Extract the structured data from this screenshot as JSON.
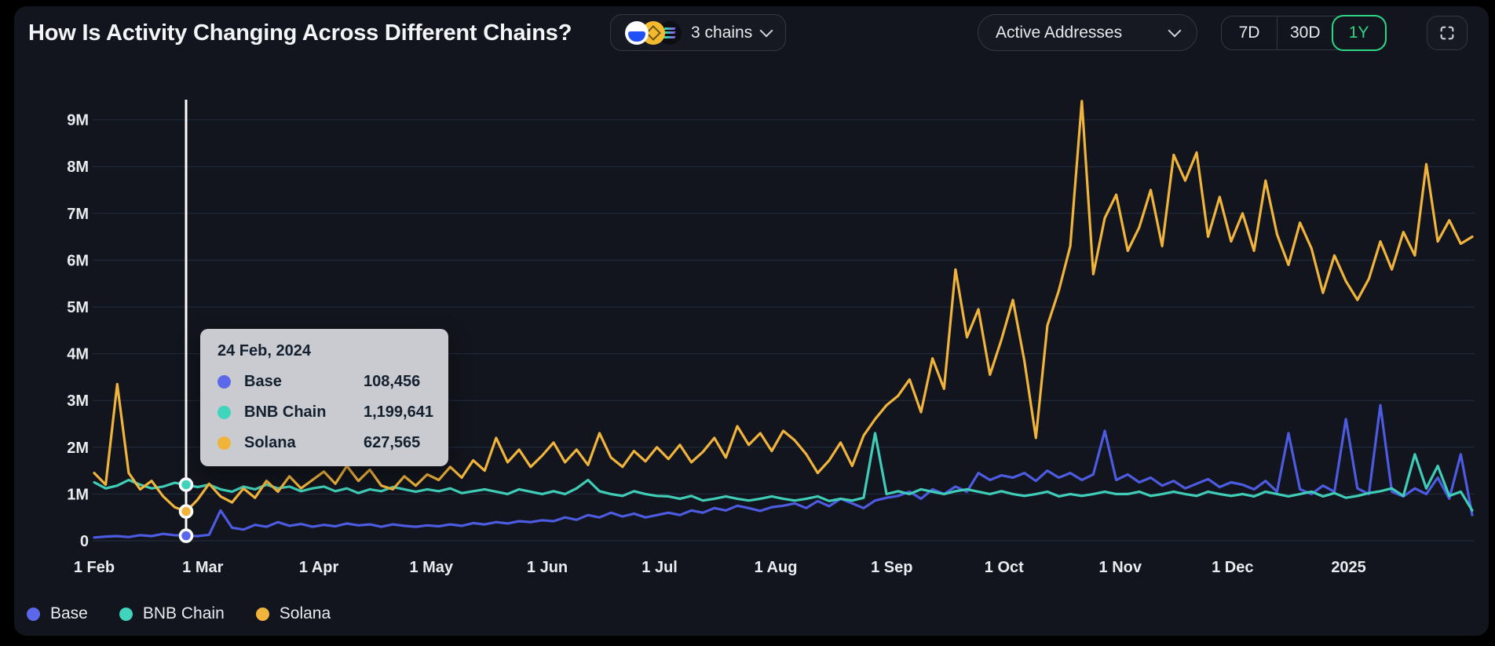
{
  "header": {
    "title": "How Is Activity Changing Across Different Chains?",
    "chains_selector": {
      "label": "3 chains",
      "icons": [
        "base-coin",
        "bnb-coin",
        "solana-coin"
      ]
    },
    "metric_selector": {
      "value": "Active Addresses"
    },
    "range_buttons": [
      {
        "label": "7D",
        "active": false
      },
      {
        "label": "30D",
        "active": false
      },
      {
        "label": "1Y",
        "active": true
      }
    ]
  },
  "colors": {
    "background": "#12151d",
    "outer": "#000000",
    "gridline": "rgba(96,135,180,0.22)",
    "axis_text": "#e9ecef",
    "accent_green": "#2ed583",
    "hover_line": "#ffffff",
    "tooltip_bg": "#c9cbd0",
    "tooltip_text": "#15202e"
  },
  "tooltip": {
    "date": "24 Feb, 2024",
    "point_index": 8,
    "rows": [
      {
        "name": "Base",
        "value": "108,456"
      },
      {
        "name": "BNB Chain",
        "value": "1,199,641"
      },
      {
        "name": "Solana",
        "value": "627,565"
      }
    ]
  },
  "legend": [
    {
      "label": "Base",
      "color": "#5b68ea"
    },
    {
      "label": "BNB Chain",
      "color": "#41d4bd"
    },
    {
      "label": "Solana",
      "color": "#f0b43c"
    }
  ],
  "chart_data": {
    "type": "line",
    "title": "How Is Activity Changing Across Different Chains?",
    "metric": "Active Addresses",
    "unit": "millions of active addresses",
    "x_range": [
      "1 Feb 2024",
      "Feb 2025"
    ],
    "ylim": [
      0,
      9500000
    ],
    "grid": "horizontal",
    "legend_position": "bottom-left",
    "y_ticks": [
      "0",
      "1M",
      "2M",
      "3M",
      "4M",
      "5M",
      "6M",
      "7M",
      "8M",
      "9M"
    ],
    "x_ticks": [
      {
        "label": "1 Feb",
        "f": 0.0
      },
      {
        "label": "1 Mar",
        "f": 0.0788
      },
      {
        "label": "1 Apr",
        "f": 0.163
      },
      {
        "label": "1 May",
        "f": 0.2446
      },
      {
        "label": "1 Jun",
        "f": 0.3288
      },
      {
        "label": "1 Jul",
        "f": 0.4103
      },
      {
        "label": "1 Aug",
        "f": 0.4946
      },
      {
        "label": "1 Sep",
        "f": 0.5788
      },
      {
        "label": "1 Oct",
        "f": 0.6603
      },
      {
        "label": "1 Nov",
        "f": 0.7446
      },
      {
        "label": "1 Dec",
        "f": 0.8261
      },
      {
        "label": "2025",
        "f": 0.9103
      }
    ],
    "hover_point": {
      "date": "24 Feb, 2024",
      "base": 108456,
      "bnb_chain": 1199641,
      "solana": 627565
    },
    "series": [
      {
        "name": "Base",
        "color": "#4c5be0",
        "values_m": [
          0.07,
          0.09,
          0.1,
          0.08,
          0.12,
          0.1,
          0.15,
          0.12,
          0.1085,
          0.1,
          0.13,
          0.65,
          0.28,
          0.24,
          0.34,
          0.3,
          0.4,
          0.32,
          0.36,
          0.3,
          0.34,
          0.31,
          0.37,
          0.33,
          0.35,
          0.3,
          0.35,
          0.32,
          0.3,
          0.33,
          0.31,
          0.35,
          0.32,
          0.38,
          0.35,
          0.4,
          0.37,
          0.42,
          0.4,
          0.44,
          0.42,
          0.5,
          0.45,
          0.55,
          0.5,
          0.6,
          0.52,
          0.58,
          0.5,
          0.55,
          0.6,
          0.55,
          0.65,
          0.6,
          0.7,
          0.65,
          0.75,
          0.7,
          0.64,
          0.72,
          0.75,
          0.8,
          0.7,
          0.85,
          0.74,
          0.9,
          0.8,
          0.7,
          0.86,
          0.92,
          0.96,
          1.05,
          0.9,
          1.1,
          1.0,
          1.16,
          1.05,
          1.45,
          1.3,
          1.4,
          1.35,
          1.45,
          1.28,
          1.5,
          1.35,
          1.45,
          1.3,
          1.42,
          2.35,
          1.3,
          1.42,
          1.25,
          1.35,
          1.18,
          1.28,
          1.12,
          1.22,
          1.32,
          1.15,
          1.25,
          1.2,
          1.1,
          1.28,
          1.05,
          2.3,
          1.1,
          1.0,
          1.18,
          1.05,
          2.6,
          1.12,
          1.0,
          2.9,
          1.05,
          0.95,
          1.12,
          1.0,
          1.35,
          0.9,
          1.85,
          0.55
        ]
      },
      {
        "name": "BNB Chain",
        "color": "#3fcdb7",
        "values_m": [
          1.25,
          1.12,
          1.18,
          1.3,
          1.2,
          1.12,
          1.16,
          1.24,
          1.1996,
          1.15,
          1.2,
          1.1,
          1.05,
          1.16,
          1.1,
          1.2,
          1.12,
          1.16,
          1.06,
          1.12,
          1.16,
          1.06,
          1.12,
          1.02,
          1.1,
          1.06,
          1.15,
          1.1,
          1.05,
          1.1,
          1.06,
          1.12,
          1.02,
          1.06,
          1.1,
          1.05,
          1.0,
          1.1,
          1.05,
          1.0,
          1.06,
          1.0,
          1.12,
          1.3,
          1.06,
          1.0,
          0.96,
          1.06,
          1.0,
          0.96,
          0.95,
          0.9,
          0.96,
          0.86,
          0.9,
          0.95,
          0.9,
          0.86,
          0.9,
          0.95,
          0.9,
          0.86,
          0.9,
          0.95,
          0.85,
          0.9,
          0.86,
          0.92,
          2.3,
          1.0,
          1.06,
          1.0,
          1.1,
          1.05,
          1.0,
          1.06,
          1.1,
          1.05,
          1.0,
          1.06,
          1.0,
          0.96,
          1.0,
          1.05,
          0.95,
          1.0,
          0.96,
          1.0,
          1.05,
          1.0,
          1.0,
          1.05,
          0.96,
          1.0,
          1.05,
          1.0,
          0.96,
          1.05,
          1.0,
          0.96,
          1.0,
          0.95,
          1.05,
          1.0,
          0.95,
          1.0,
          1.05,
          0.95,
          1.02,
          0.92,
          0.96,
          1.02,
          1.06,
          1.12,
          0.96,
          1.85,
          1.12,
          1.6,
          0.96,
          1.05,
          0.65
        ]
      },
      {
        "name": "Solana",
        "color": "#f0b43c",
        "values_m": [
          1.45,
          1.2,
          3.35,
          1.45,
          1.1,
          1.28,
          0.95,
          0.72,
          0.6276,
          0.88,
          1.22,
          0.95,
          0.82,
          1.12,
          0.92,
          1.28,
          1.05,
          1.38,
          1.12,
          1.3,
          1.48,
          1.22,
          1.6,
          1.28,
          1.52,
          1.18,
          1.1,
          1.38,
          1.18,
          1.42,
          1.3,
          1.58,
          1.35,
          1.72,
          1.5,
          2.2,
          1.68,
          1.95,
          1.58,
          1.82,
          2.1,
          1.68,
          1.95,
          1.62,
          2.3,
          1.78,
          1.58,
          1.92,
          1.7,
          2.0,
          1.75,
          2.05,
          1.68,
          1.9,
          2.2,
          1.78,
          2.45,
          2.05,
          2.3,
          1.92,
          2.35,
          2.15,
          1.85,
          1.45,
          1.72,
          2.1,
          1.6,
          2.25,
          2.6,
          2.9,
          3.1,
          3.45,
          2.75,
          3.9,
          3.25,
          5.8,
          4.35,
          4.95,
          3.55,
          4.3,
          5.15,
          3.85,
          2.2,
          4.6,
          5.35,
          6.3,
          9.4,
          5.7,
          6.9,
          7.4,
          6.2,
          6.7,
          7.5,
          6.3,
          8.25,
          7.7,
          8.3,
          6.5,
          7.35,
          6.4,
          7.0,
          6.2,
          7.7,
          6.55,
          5.9,
          6.8,
          6.25,
          5.3,
          6.1,
          5.55,
          5.15,
          5.6,
          6.4,
          5.8,
          6.6,
          6.1,
          8.05,
          6.4,
          6.85,
          6.35,
          6.5
        ]
      }
    ]
  }
}
